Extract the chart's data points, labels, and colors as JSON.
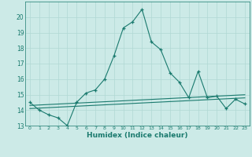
{
  "xlabel": "Humidex (Indice chaleur)",
  "x": [
    0,
    1,
    2,
    3,
    4,
    5,
    6,
    7,
    8,
    9,
    10,
    11,
    12,
    13,
    14,
    15,
    16,
    17,
    18,
    19,
    20,
    21,
    22,
    23
  ],
  "y_main": [
    14.5,
    14.0,
    13.7,
    13.5,
    13.0,
    14.5,
    15.1,
    15.3,
    16.0,
    17.5,
    19.3,
    19.7,
    20.5,
    18.4,
    17.9,
    16.4,
    15.8,
    14.8,
    16.5,
    14.8,
    14.9,
    14.1,
    14.7,
    14.4
  ],
  "y_line1": [
    14.1,
    14.13,
    14.16,
    14.19,
    14.22,
    14.25,
    14.28,
    14.31,
    14.34,
    14.37,
    14.4,
    14.43,
    14.46,
    14.49,
    14.52,
    14.55,
    14.58,
    14.61,
    14.64,
    14.67,
    14.7,
    14.73,
    14.76,
    14.79
  ],
  "y_line2": [
    14.3,
    14.33,
    14.36,
    14.39,
    14.42,
    14.45,
    14.48,
    14.51,
    14.54,
    14.57,
    14.6,
    14.63,
    14.66,
    14.69,
    14.72,
    14.75,
    14.78,
    14.81,
    14.84,
    14.87,
    14.9,
    14.93,
    14.96,
    14.99
  ],
  "ylim": [
    13,
    21
  ],
  "yticks": [
    13,
    14,
    15,
    16,
    17,
    18,
    19,
    20
  ],
  "xticks": [
    0,
    1,
    2,
    3,
    4,
    5,
    6,
    7,
    8,
    9,
    10,
    11,
    12,
    13,
    14,
    15,
    16,
    17,
    18,
    19,
    20,
    21,
    22,
    23
  ],
  "line_color": "#1a7a6e",
  "bg_color": "#cceae7",
  "grid_color": "#b0d8d4"
}
